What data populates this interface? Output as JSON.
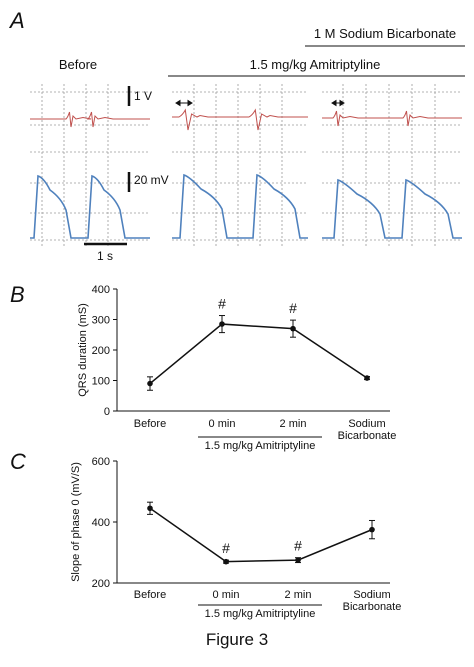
{
  "panel_a": {
    "label": "A",
    "before_label": "Before",
    "drug_label": "1.5 mg/kg Amitriptyline",
    "bicarb_label": "1 M Sodium Bicarbonate",
    "ecg_scale": "1 V",
    "ap_scale": "20 mV",
    "time_scale": "1 s",
    "colors": {
      "ecg": "#c0504d",
      "ap": "#4f81bd",
      "grid": "#9a9a9a"
    }
  },
  "chart_data": [
    {
      "panel": "B",
      "type": "line",
      "categories": [
        "Before",
        "0 min",
        "2 min",
        "Sodium Bicarbonate"
      ],
      "values": [
        90,
        285,
        270,
        108
      ],
      "errors": [
        22,
        28,
        28,
        5
      ],
      "significance": [
        "",
        "#",
        "#",
        ""
      ],
      "ylabel": "QRS duration (mS)",
      "ylim": [
        0,
        400
      ],
      "yticks": [
        0,
        100,
        200,
        300,
        400
      ],
      "group_label": "1.5 mg/kg Amitriptyline"
    },
    {
      "panel": "C",
      "type": "line",
      "categories": [
        "Before",
        "0 min",
        "2 min",
        "Sodium Bicarbonate"
      ],
      "values": [
        445,
        270,
        275,
        375
      ],
      "errors": [
        20,
        5,
        8,
        30
      ],
      "significance": [
        "",
        "#",
        "#",
        ""
      ],
      "ylabel": "Slope of phase 0 (mV/S)",
      "ylim": [
        200,
        600
      ],
      "yticks": [
        200,
        400,
        600
      ],
      "group_label": "1.5 mg/kg Amitriptyline"
    }
  ],
  "figure_caption": "Figure  3"
}
